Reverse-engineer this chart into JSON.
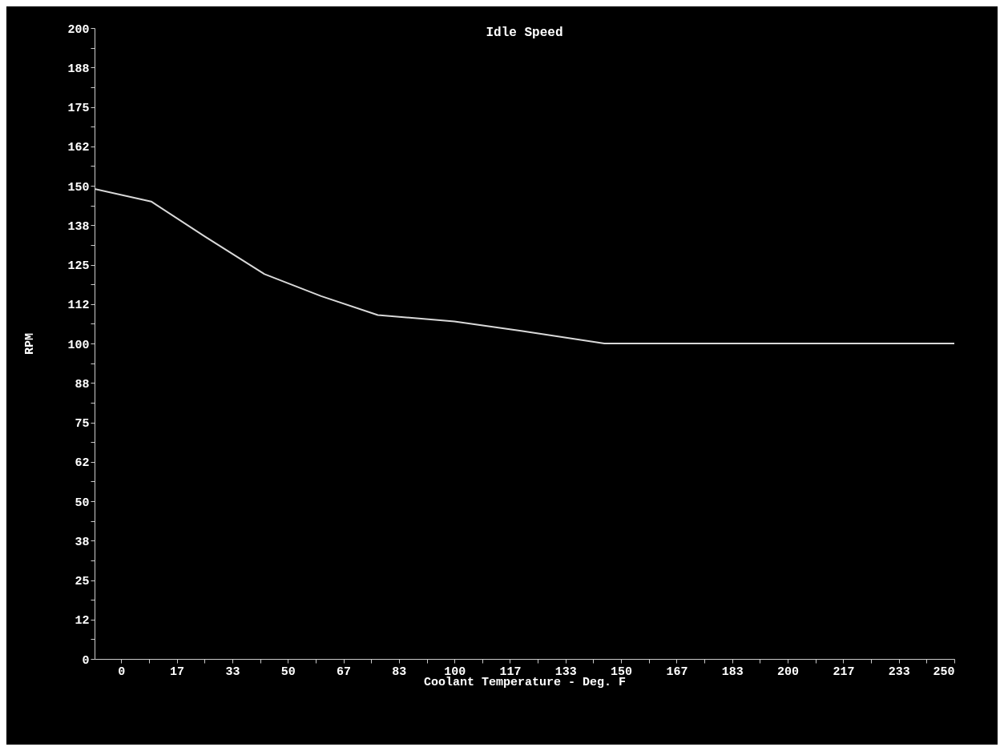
{
  "chart_data": {
    "type": "line",
    "title": "Idle Speed",
    "xlabel": "Coolant Temperature - Deg. F",
    "ylabel": "RPM",
    "x": [
      -8,
      9,
      25,
      43,
      60,
      77,
      100,
      120,
      145,
      250
    ],
    "series": [
      {
        "color": "#d9d9d9",
        "values": [
          149,
          145,
          134,
          122,
          115,
          109,
          107,
          104,
          100,
          100
        ]
      }
    ],
    "xlim": [
      -8,
      250
    ],
    "xticks": [
      {
        "value": 0,
        "label": "0"
      },
      {
        "value": 8.33,
        "label": null
      },
      {
        "value": 16.67,
        "label": "17"
      },
      {
        "value": 25,
        "label": null
      },
      {
        "value": 33.33,
        "label": "33"
      },
      {
        "value": 41.67,
        "label": null
      },
      {
        "value": 50,
        "label": "50"
      },
      {
        "value": 58.33,
        "label": null
      },
      {
        "value": 66.67,
        "label": "67"
      },
      {
        "value": 75,
        "label": null
      },
      {
        "value": 83.33,
        "label": "83"
      },
      {
        "value": 91.67,
        "label": null
      },
      {
        "value": 100,
        "label": "100"
      },
      {
        "value": 108.33,
        "label": null
      },
      {
        "value": 116.67,
        "label": "117"
      },
      {
        "value": 125,
        "label": null
      },
      {
        "value": 133.33,
        "label": "133"
      },
      {
        "value": 141.67,
        "label": null
      },
      {
        "value": 150,
        "label": "150"
      },
      {
        "value": 158.33,
        "label": null
      },
      {
        "value": 166.67,
        "label": "167"
      },
      {
        "value": 175,
        "label": null
      },
      {
        "value": 183.33,
        "label": "183"
      },
      {
        "value": 191.67,
        "label": null
      },
      {
        "value": 200,
        "label": "200"
      },
      {
        "value": 208.33,
        "label": null
      },
      {
        "value": 216.67,
        "label": "217"
      },
      {
        "value": 225,
        "label": null
      },
      {
        "value": 233.33,
        "label": "233"
      },
      {
        "value": 241.67,
        "label": null
      },
      {
        "value": 250,
        "label": "250"
      }
    ],
    "ylim": [
      0,
      200
    ],
    "yticks": [
      {
        "value": 0,
        "label": "0"
      },
      {
        "value": 6.25,
        "label": null
      },
      {
        "value": 12.5,
        "label": "12"
      },
      {
        "value": 18.75,
        "label": null
      },
      {
        "value": 25,
        "label": "25"
      },
      {
        "value": 31.25,
        "label": null
      },
      {
        "value": 37.5,
        "label": "38"
      },
      {
        "value": 43.75,
        "label": null
      },
      {
        "value": 50,
        "label": "50"
      },
      {
        "value": 56.25,
        "label": null
      },
      {
        "value": 62.5,
        "label": "62"
      },
      {
        "value": 68.75,
        "label": null
      },
      {
        "value": 75,
        "label": "75"
      },
      {
        "value": 81.25,
        "label": null
      },
      {
        "value": 87.5,
        "label": "88"
      },
      {
        "value": 93.75,
        "label": null
      },
      {
        "value": 100,
        "label": "100"
      },
      {
        "value": 106.25,
        "label": null
      },
      {
        "value": 112.5,
        "label": "112"
      },
      {
        "value": 118.75,
        "label": null
      },
      {
        "value": 125,
        "label": "125"
      },
      {
        "value": 131.25,
        "label": null
      },
      {
        "value": 137.5,
        "label": "138"
      },
      {
        "value": 143.75,
        "label": null
      },
      {
        "value": 150,
        "label": "150"
      },
      {
        "value": 156.25,
        "label": null
      },
      {
        "value": 162.5,
        "label": "162"
      },
      {
        "value": 168.75,
        "label": null
      },
      {
        "value": 175,
        "label": "175"
      },
      {
        "value": 181.25,
        "label": null
      },
      {
        "value": 187.5,
        "label": "188"
      },
      {
        "value": 193.75,
        "label": null
      },
      {
        "value": 200,
        "label": "200"
      }
    ],
    "grid": false
  }
}
